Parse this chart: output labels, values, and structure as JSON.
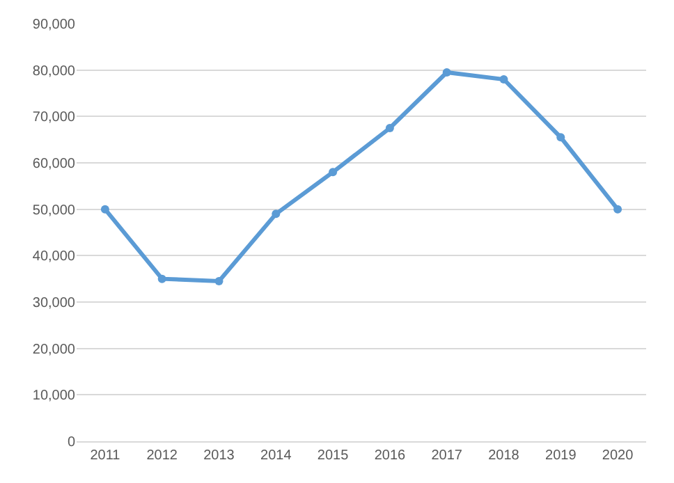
{
  "chart_data": {
    "type": "line",
    "categories": [
      "2011",
      "2012",
      "2013",
      "2014",
      "2015",
      "2016",
      "2017",
      "2018",
      "2019",
      "2020"
    ],
    "series": [
      {
        "color": "#5b9bd5",
        "values": [
          50000,
          35000,
          34500,
          49000,
          58000,
          67500,
          79500,
          78000,
          65500,
          50000
        ]
      }
    ],
    "ylim": [
      0,
      90000
    ],
    "yticks": [
      {
        "value": 0,
        "label": "0"
      },
      {
        "value": 10000,
        "label": "10,000"
      },
      {
        "value": 20000,
        "label": "20,000"
      },
      {
        "value": 30000,
        "label": "30,000"
      },
      {
        "value": 40000,
        "label": "40,000"
      },
      {
        "value": 50000,
        "label": "50,000"
      },
      {
        "value": 60000,
        "label": "60,000"
      },
      {
        "value": 70000,
        "label": "70,000"
      },
      {
        "value": 80000,
        "label": "80,000"
      },
      {
        "value": 90000,
        "label": "90,000"
      }
    ],
    "grid": "y",
    "marker": "circle",
    "line_style": "solid"
  }
}
